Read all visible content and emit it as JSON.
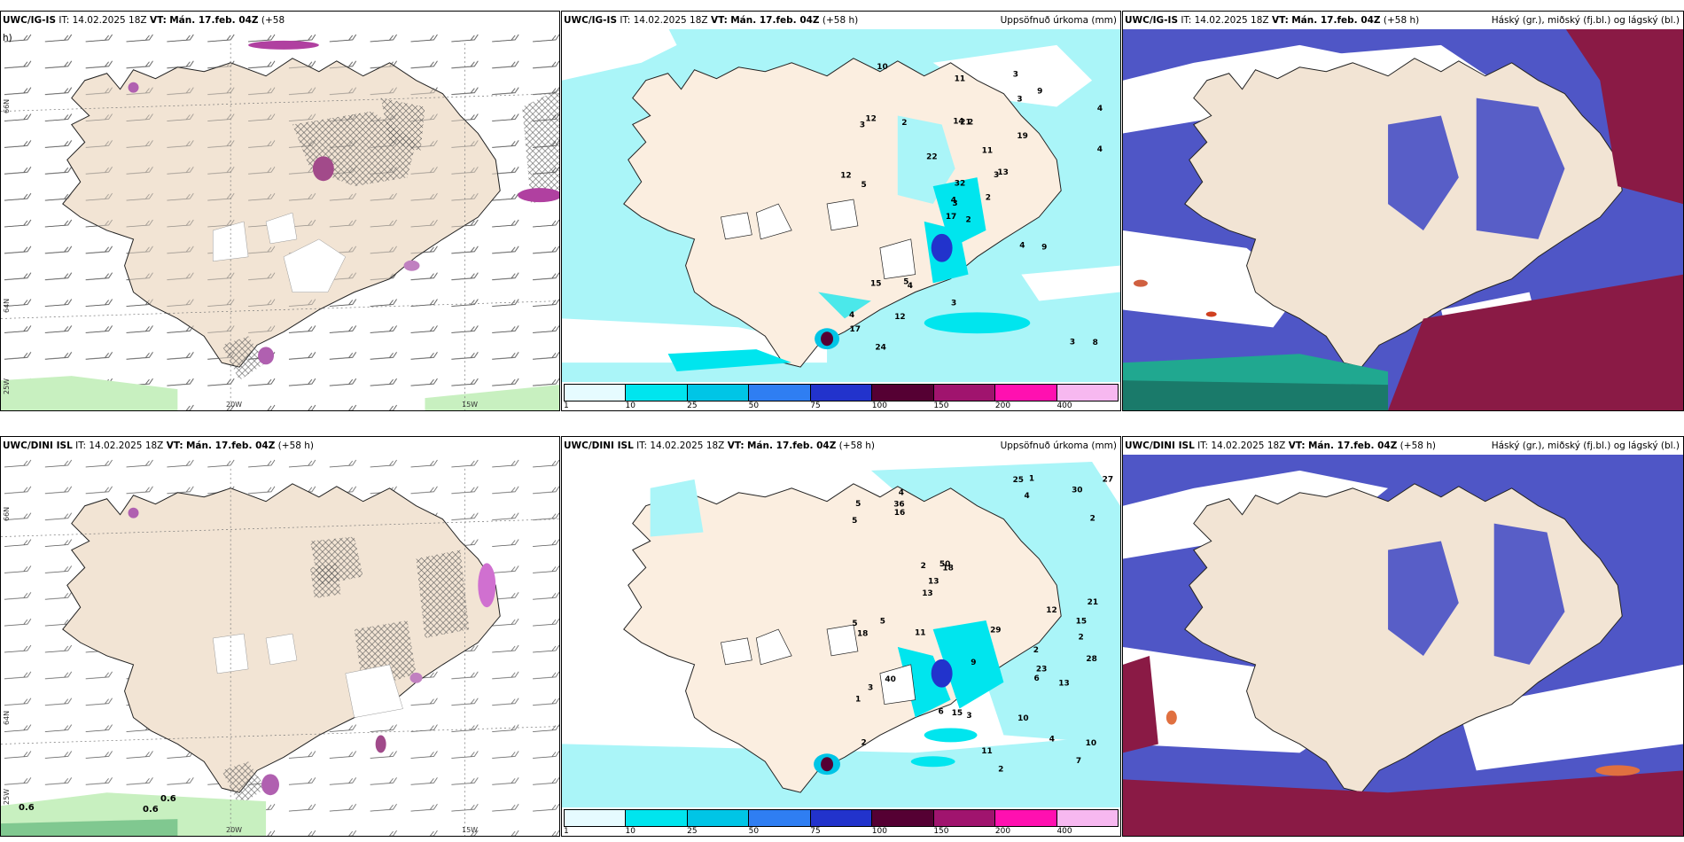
{
  "panels": {
    "p1": {
      "source": "UWC/IG-IS",
      "it": "IT: 14.02.2025 18Z",
      "vt_label": "VT:",
      "vt": "Mán. 17.feb. 04Z",
      "plus": "(+58",
      "wrap": "h)"
    },
    "p2": {
      "source": "UWC/IG-IS",
      "it": "IT: 14.02.2025 18Z",
      "vt_label": "VT:",
      "vt": "Mán. 17.feb. 04Z",
      "plus": "(+58 h)",
      "title": "Uppsöfnuð úrkoma (mm)"
    },
    "p3": {
      "source": "UWC/IG-IS",
      "it": "IT: 14.02.2025 18Z",
      "vt_label": "VT:",
      "vt": "Mán. 17.feb. 04Z",
      "plus": "(+58 h)",
      "title": "Háský (gr.), miðský (fj.bl.) og lágský (bl.)"
    },
    "p4": {
      "source": "UWC/DINI ISL",
      "it": "IT: 14.02.2025 18Z",
      "vt_label": "VT:",
      "vt": "Mán. 17.feb. 04Z",
      "plus": "(+58 h)"
    },
    "p5": {
      "source": "UWC/DINI ISL",
      "it": "IT: 14.02.2025 18Z",
      "vt_label": "VT:",
      "vt": "Mán. 17.feb. 04Z",
      "plus": "(+58 h)",
      "title": "Uppsöfnuð úrkoma (mm)"
    },
    "p6": {
      "source": "UWC/DINI ISL",
      "it": "IT: 14.02.2025 18Z",
      "vt_label": "VT:",
      "vt": "Mán. 17.feb. 04Z",
      "plus": "(+58 h)",
      "title": "Háský (gr.), miðský (fj.bl.) og lágský (bl.)"
    }
  },
  "axes": {
    "lon_20": "20W",
    "lon_15": "15W",
    "lat_66": "66N",
    "lat_64": "64N",
    "lon_25": "25W"
  },
  "legend": {
    "ticks": [
      "1",
      "10",
      "25",
      "50",
      "75",
      "100",
      "150",
      "200",
      "400"
    ],
    "colors": [
      "#e6fbff",
      "#00e5ee",
      "#00c5e6",
      "#2f7ef2",
      "#2233cc",
      "#550033",
      "#a0146e",
      "#ff10b0",
      "#f7b8f0"
    ]
  },
  "colors": {
    "land": "#f2e4d4",
    "sea_precip": "#aaf5f8",
    "cloud_low": "#4f56c6",
    "cloud_high": "#8a1a45",
    "cloud_mid": "#20a890"
  },
  "precip_labels_top": [
    "2",
    "3",
    "3",
    "4",
    "3",
    "4",
    "3",
    "2",
    "3",
    "2",
    "10",
    "8",
    "5",
    "4",
    "17",
    "19",
    "24",
    "14",
    "11",
    "15",
    "22",
    "17",
    "12",
    "21",
    "13",
    "9",
    "12",
    "11",
    "12",
    "4",
    "4",
    "4",
    "3",
    "32",
    "2",
    "9",
    "5",
    "3"
  ],
  "precip_labels_bottom": [
    "2",
    "2",
    "2",
    "4",
    "18",
    "4",
    "1",
    "4",
    "2",
    "2",
    "5",
    "5",
    "5",
    "10",
    "6",
    "21",
    "9",
    "29",
    "50",
    "40",
    "27",
    "30",
    "13",
    "28",
    "25",
    "36",
    "23",
    "18",
    "16",
    "12",
    "11",
    "10",
    "13",
    "11",
    "15",
    "13",
    "6",
    "5",
    "3",
    "3",
    "2",
    "1",
    "7",
    "15"
  ],
  "wind_labels": {
    "v1": "0.6",
    "v2": "0.6",
    "v3": "0.6"
  }
}
